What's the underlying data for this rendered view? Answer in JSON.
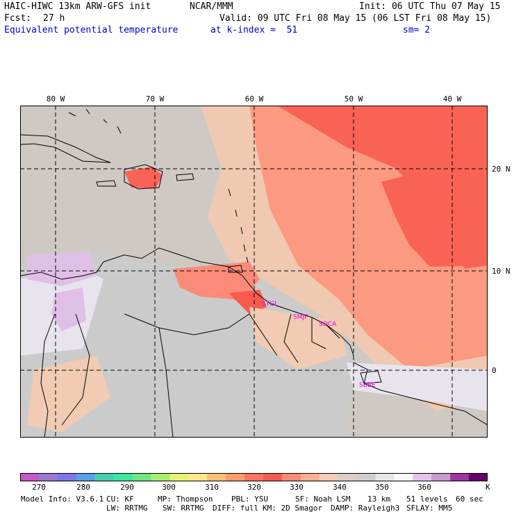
{
  "header": {
    "model_title": "HAIC-HIWC 13km ARW-GFS init",
    "org": "NCAR/MMM",
    "init": "Init: 06 UTC Thu 07 May 15",
    "fcst_label": "Fcst:",
    "fcst_value": "27 h",
    "valid": "Valid: 09 UTC Fri 08 May 15 (06 LST Fri 08 May 15)",
    "field": "Equivalent potential temperature",
    "level": "at k-index =  51",
    "smooth": "sm= 2"
  },
  "map": {
    "lon_labels": [
      "80 W",
      "70 W",
      "60 W",
      "50 W",
      "40 W"
    ],
    "lat_labels": [
      "20 N",
      "10 N",
      "0"
    ],
    "stations": [
      "STGL",
      "SMJP",
      "SOCA",
      "SBBE"
    ],
    "colors": {
      "ocean_low": "#cfc9c4",
      "ocean_mid": "#f0c9b2",
      "ocean_warm": "#fb9a80",
      "ocean_hot": "#f96355",
      "land_cool": "#e8e4ee",
      "land_mid": "#cbcbcb",
      "cold_purple": "#e0bfe6",
      "station": "#dd00dd"
    }
  },
  "colorbar": {
    "ticks": [
      "270",
      "280",
      "290",
      "300",
      "310",
      "320",
      "330",
      "340",
      "350",
      "360"
    ],
    "unit": "K",
    "colors": [
      "#c25ac8",
      "#9c7ad2",
      "#7b78e6",
      "#5aa0e6",
      "#45d0b0",
      "#3be89c",
      "#6ee680",
      "#a8ee70",
      "#e6f26e",
      "#fce88a",
      "#fcc07a",
      "#fa9e6c",
      "#fa7460",
      "#f85a50",
      "#fb8a78",
      "#f7ae96",
      "#f1cbb3",
      "#e0ccc4",
      "#d0cdcc",
      "#e8e6e6",
      "#f8f6f8",
      "#e2c4e8",
      "#c89ad0",
      "#9a3aa0",
      "#6a006a"
    ]
  },
  "footer": {
    "line1": [
      "Model Info: V3.6.1",
      "CU: KF",
      "MP: Thompson",
      "PBL: YSU",
      "SF: Noah LSM",
      "13 km",
      "51 levels",
      "60 sec"
    ],
    "line2": [
      "LW: RRTMG",
      "SW: RRTMG",
      "DIFF: full",
      "KM: 2D Smagor",
      "DAMP: Rayleigh3",
      "SFLAY: MM5"
    ]
  }
}
